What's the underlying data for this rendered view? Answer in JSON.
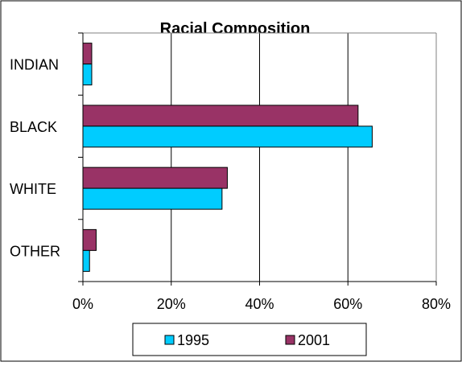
{
  "chart_data": {
    "type": "bar",
    "orientation": "horizontal",
    "title": "Racial Composition",
    "categories": [
      "INDIAN",
      "BLACK",
      "WHITE",
      "OTHER"
    ],
    "series": [
      {
        "name": "1995",
        "color": "#00ccff",
        "values": [
          2,
          65.5,
          31.5,
          1.5
        ]
      },
      {
        "name": "2001",
        "color": "#993366",
        "values": [
          2,
          62.3,
          32.7,
          3
        ]
      }
    ],
    "xlim": [
      0,
      80
    ],
    "x_ticks": [
      0,
      20,
      40,
      60,
      80
    ],
    "x_tick_labels": [
      "0%",
      "20%",
      "40%",
      "60%",
      "80%"
    ],
    "grid": true,
    "legend_position": "bottom"
  }
}
